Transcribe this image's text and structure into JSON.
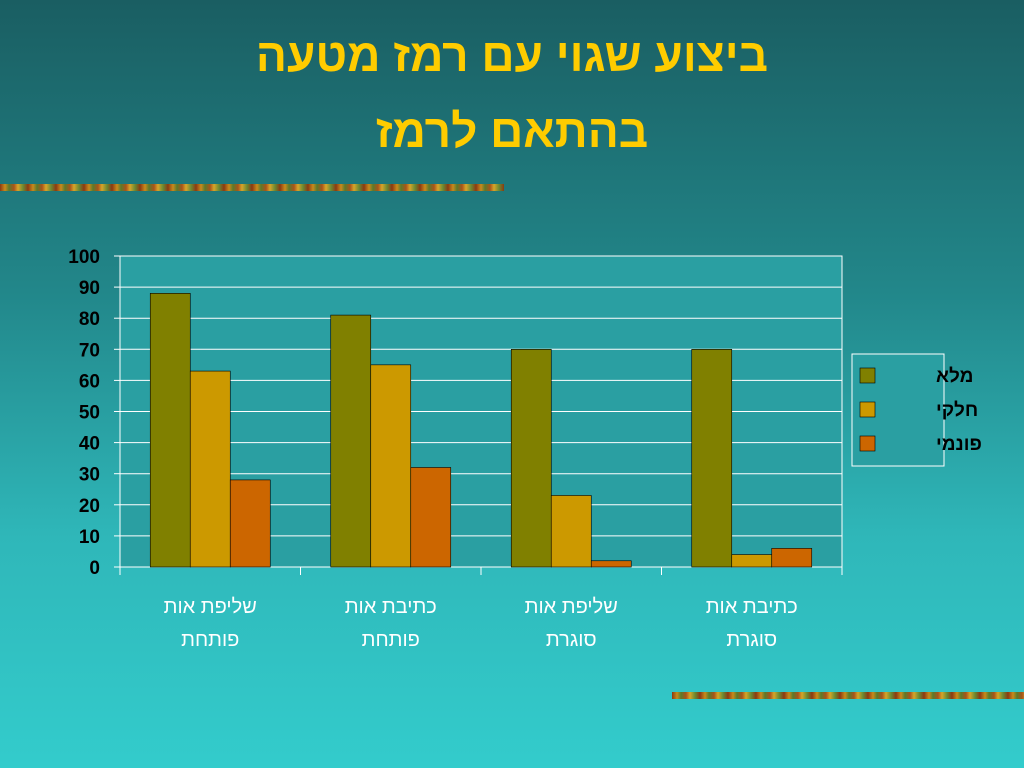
{
  "slide": {
    "title_line1": "ביצוע שגוי עם רמז מטעה",
    "title_line2": "בהתאם לרמז"
  },
  "chart_data": {
    "type": "bar",
    "categories": [
      [
        "שליפת אות",
        "פותחת"
      ],
      [
        "כתיבת אות",
        "פותחת"
      ],
      [
        "שליפת אות",
        "סוגרת"
      ],
      [
        "כתיבת אות",
        "סוגרת"
      ]
    ],
    "series": [
      {
        "name": "מלא",
        "color": "#808000",
        "values": [
          88,
          81,
          70,
          70
        ]
      },
      {
        "name": "חלקי",
        "color": "#cc9900",
        "values": [
          63,
          65,
          23,
          4
        ]
      },
      {
        "name": "פונמי",
        "color": "#cc6600",
        "values": [
          28,
          32,
          2,
          6
        ]
      }
    ],
    "ylim": [
      0,
      100
    ],
    "yticks": [
      0,
      10,
      20,
      30,
      40,
      50,
      60,
      70,
      80,
      90,
      100
    ],
    "grid": true,
    "legend": "right",
    "plot_background": "#2a9fa2"
  }
}
